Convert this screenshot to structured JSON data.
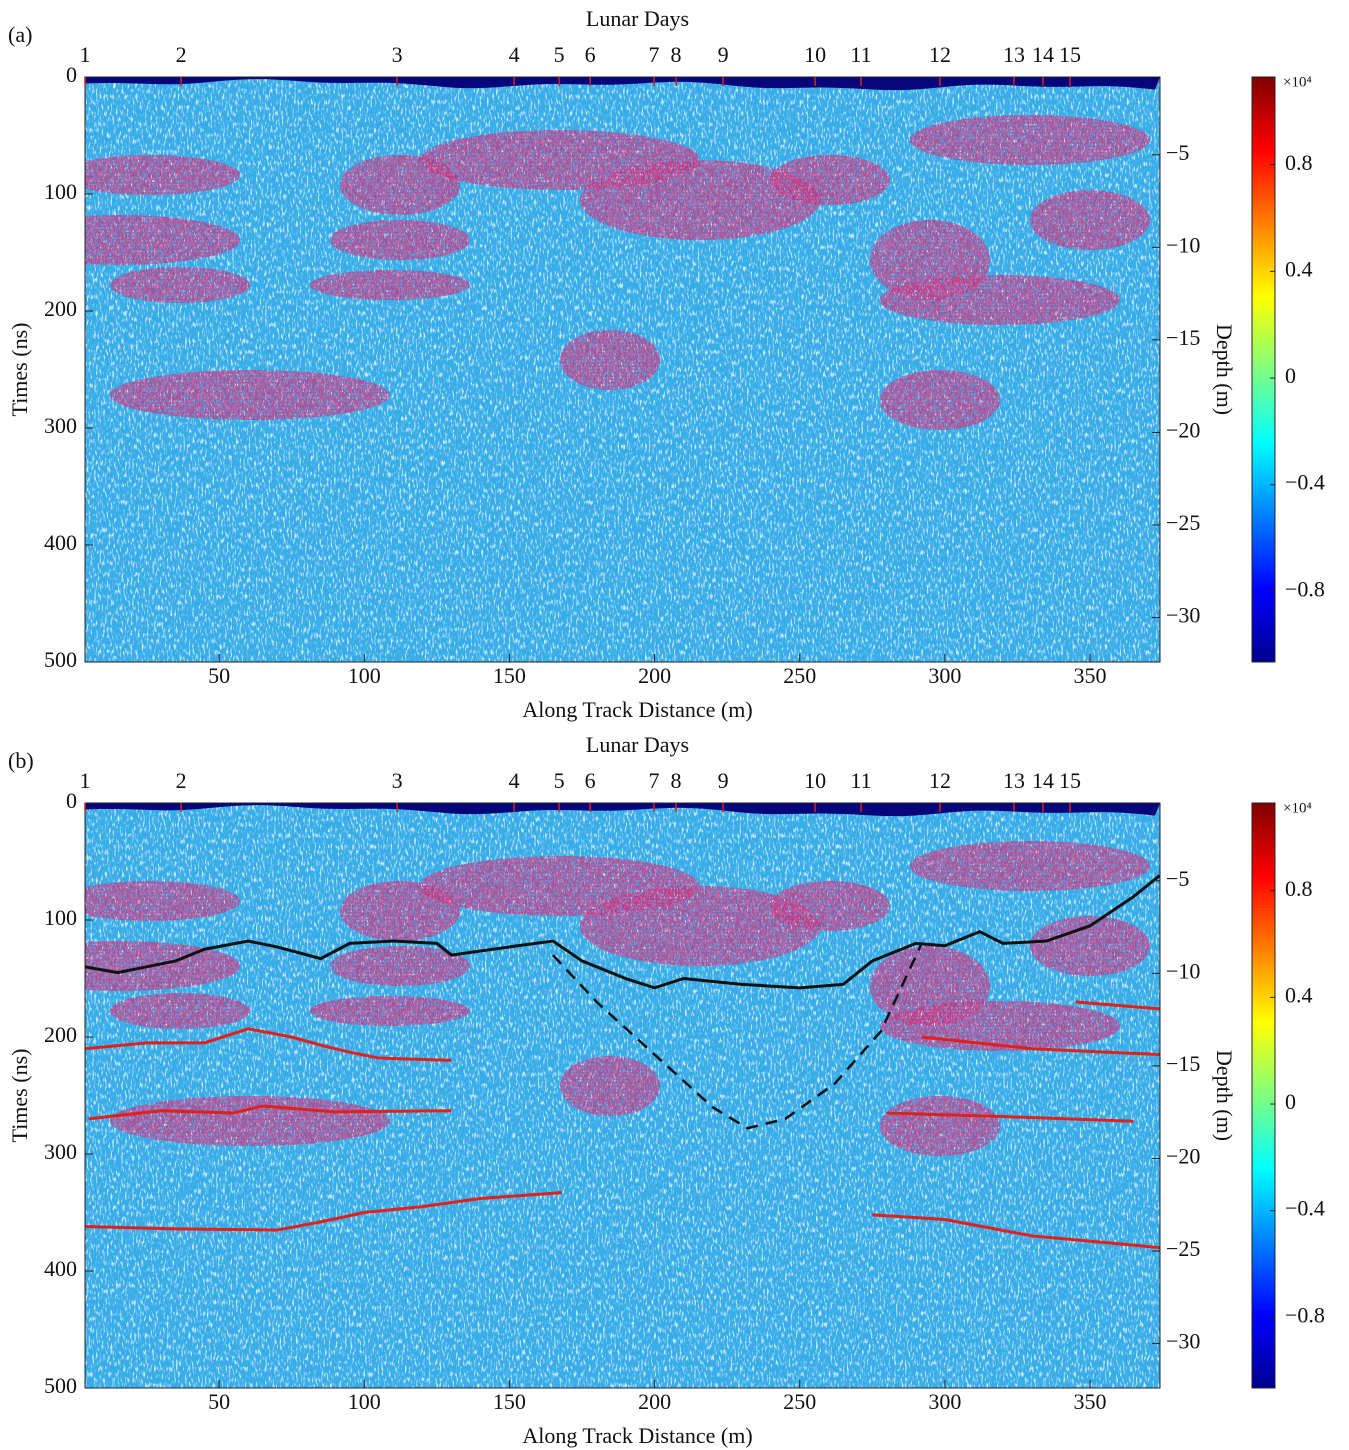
{
  "chart_data": [
    {
      "type": "heatmap",
      "panel_label": "(a)",
      "top_axis_label": "Lunar Days",
      "xlabel": "Along Track Distance (m)",
      "ylabel": "Times (ns)",
      "y2label": "Depth (m)",
      "xlim": [
        3.8,
        374.1
      ],
      "xticks": [
        50,
        100,
        150,
        200,
        250,
        300,
        350
      ],
      "ylim": [
        500,
        0
      ],
      "yticks": [
        0,
        100,
        200,
        300,
        400,
        500
      ],
      "y2lim": [
        -32.4,
        -0.8
      ],
      "y2ticks": [
        {
          "value": -5,
          "label": "−5"
        },
        {
          "value": -10,
          "label": "−10"
        },
        {
          "value": -15,
          "label": "−15"
        },
        {
          "value": -20,
          "label": "−20"
        },
        {
          "value": -25,
          "label": "−25"
        },
        {
          "value": -30,
          "label": "−30"
        }
      ],
      "top_ticks": [
        {
          "value": 3.8,
          "label": "1"
        },
        {
          "value": 36.9,
          "label": "2"
        },
        {
          "value": 111.3,
          "label": "3"
        },
        {
          "value": 151.6,
          "label": "4"
        },
        {
          "value": 167.1,
          "label": "5"
        },
        {
          "value": 177.8,
          "label": "6"
        },
        {
          "value": 199.8,
          "label": "7"
        },
        {
          "value": 207.4,
          "label": "8"
        },
        {
          "value": 223.6,
          "label": "9"
        },
        {
          "value": 255.3,
          "label": "10"
        },
        {
          "value": 271.1,
          "label": "11"
        },
        {
          "value": 298.3,
          "label": "12"
        },
        {
          "value": 323.8,
          "label": "13"
        },
        {
          "value": 333.8,
          "label": "14"
        },
        {
          "value": 343.1,
          "label": "15"
        }
      ],
      "top_tick_color": "#d62020",
      "clim": [
        -1.065,
        1.129
      ],
      "colorbar_exponent": "×10⁴",
      "colormap": "jet",
      "cticks": [
        {
          "value": -0.8,
          "label": "−0.8"
        },
        {
          "value": -0.4,
          "label": "−0.4"
        },
        0,
        0.4,
        0.8
      ]
    },
    {
      "type": "heatmap",
      "panel_label": "(b)",
      "top_axis_label": "Lunar Days",
      "xlabel": "Along Track Distance (m)",
      "ylabel": "Times (ns)",
      "y2label": "Depth (m)",
      "xlim": [
        3.8,
        374.1
      ],
      "xticks": [
        50,
        100,
        150,
        200,
        250,
        300,
        350
      ],
      "ylim": [
        500,
        0
      ],
      "yticks": [
        0,
        100,
        200,
        300,
        400,
        500
      ],
      "y2lim": [
        -32.4,
        -0.8
      ],
      "y2ticks": [
        {
          "value": -5,
          "label": "−5"
        },
        {
          "value": -10,
          "label": "−10"
        },
        {
          "value": -15,
          "label": "−15"
        },
        {
          "value": -20,
          "label": "−20"
        },
        {
          "value": -25,
          "label": "−25"
        },
        {
          "value": -30,
          "label": "−30"
        }
      ],
      "top_ticks": [
        {
          "value": 3.8,
          "label": "1"
        },
        {
          "value": 36.9,
          "label": "2"
        },
        {
          "value": 111.3,
          "label": "3"
        },
        {
          "value": 151.6,
          "label": "4"
        },
        {
          "value": 167.1,
          "label": "5"
        },
        {
          "value": 177.8,
          "label": "6"
        },
        {
          "value": 199.8,
          "label": "7"
        },
        {
          "value": 207.4,
          "label": "8"
        },
        {
          "value": 223.6,
          "label": "9"
        },
        {
          "value": 255.3,
          "label": "10"
        },
        {
          "value": 271.1,
          "label": "11"
        },
        {
          "value": 298.3,
          "label": "12"
        },
        {
          "value": 323.8,
          "label": "13"
        },
        {
          "value": 333.8,
          "label": "14"
        },
        {
          "value": 343.1,
          "label": "15"
        }
      ],
      "top_tick_color": "#d62020",
      "clim": [
        -1.065,
        1.129
      ],
      "colorbar_exponent": "×10⁴",
      "colormap": "jet",
      "cticks": [
        {
          "value": -0.8,
          "label": "−0.8"
        },
        {
          "value": -0.4,
          "label": "−0.4"
        },
        0,
        0.4,
        0.8
      ],
      "series": [
        {
          "color": "#111111",
          "dashed": false,
          "x": [
            3.8,
            15,
            25,
            35,
            45,
            60,
            70,
            85,
            95,
            110,
            125,
            130,
            150,
            165,
            175,
            190,
            200,
            210,
            230,
            250,
            265,
            275,
            290,
            300,
            312,
            320,
            335,
            350,
            365,
            374
          ],
          "values": [
            140,
            145,
            140,
            135,
            125,
            118,
            123,
            133,
            120,
            118,
            120,
            130,
            123,
            118,
            135,
            150,
            158,
            150,
            155,
            158,
            155,
            135,
            120,
            122,
            110,
            120,
            118,
            105,
            80,
            62
          ]
        },
        {
          "color": "#111111",
          "dashed": true,
          "x": [
            165,
            180,
            200,
            220,
            232,
            245,
            262,
            278,
            292
          ],
          "values": [
            130,
            170,
            215,
            260,
            278,
            270,
            240,
            195,
            120
          ]
        },
        {
          "color": "#e0201b",
          "dashed": false,
          "x": [
            3.8,
            25,
            45,
            60,
            75,
            85,
            95,
            105,
            130
          ],
          "values": [
            210,
            205,
            205,
            193,
            200,
            207,
            213,
            218,
            220
          ]
        },
        {
          "color": "#e0201b",
          "dashed": false,
          "x": [
            5,
            30,
            55,
            65,
            90,
            130
          ],
          "values": [
            270,
            263,
            265,
            259,
            264,
            263
          ]
        },
        {
          "color": "#e0201b",
          "dashed": false,
          "x": [
            3.8,
            35,
            70,
            85,
            100,
            120,
            140,
            168
          ],
          "values": [
            362,
            364,
            365,
            358,
            350,
            345,
            338,
            333
          ]
        },
        {
          "color": "#e0201b",
          "dashed": false,
          "x": [
            292,
            330,
            374
          ],
          "values": [
            200,
            210,
            215
          ]
        },
        {
          "color": "#e0201b",
          "dashed": false,
          "x": [
            280,
            320,
            365
          ],
          "values": [
            265,
            268,
            272
          ]
        },
        {
          "color": "#e0201b",
          "dashed": false,
          "x": [
            345,
            374
          ],
          "values": [
            170,
            176
          ]
        },
        {
          "color": "#e0201b",
          "dashed": false,
          "x": [
            275,
            300,
            330,
            374
          ],
          "values": [
            352,
            356,
            370,
            380
          ]
        }
      ]
    }
  ]
}
